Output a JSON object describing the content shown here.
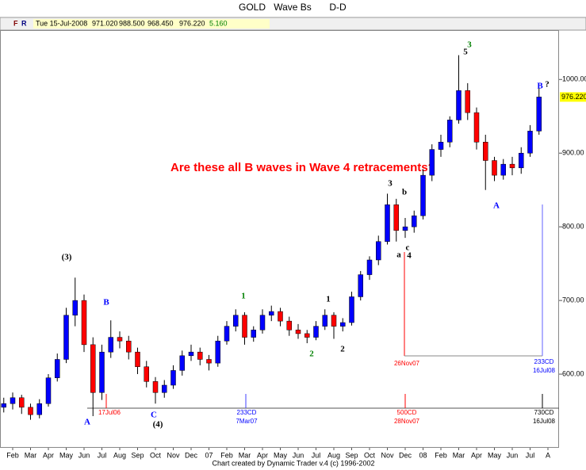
{
  "header": {
    "symbol": "GOLD",
    "study": "Wave Bs",
    "period": "D-D"
  },
  "info_bar": {
    "buttons": [
      "F",
      "R"
    ],
    "date": "Tue 15-Jul-2008",
    "open": "971.020",
    "high": "988.500",
    "low": "968.450",
    "close": "976.220",
    "change": "5.160"
  },
  "chart_data": {
    "type": "candlestick",
    "note": "Are these all B waves in Wave 4 retracements?",
    "categories": [
      null,
      "Feb",
      null,
      "Mar",
      null,
      "Apr",
      null,
      "May",
      null,
      "Jun",
      null,
      "Jul",
      null,
      "Aug",
      null,
      "Sep",
      null,
      "Oct",
      null,
      "Nov",
      null,
      "Dec",
      null,
      "07",
      null,
      "Feb",
      null,
      "Mar",
      null,
      "Apr",
      null,
      "May",
      null,
      "Jun",
      null,
      "Jul",
      null,
      "Aug",
      null,
      "Sep",
      null,
      "Oct",
      null,
      "Nov",
      null,
      "Dec",
      null,
      "08",
      null,
      "Feb",
      null,
      "Mar",
      null,
      "Apr",
      null,
      "May",
      null,
      "Jun",
      null,
      "Jul",
      null,
      "A"
    ],
    "open": [
      555,
      560,
      568,
      555,
      545,
      560,
      595,
      620,
      680,
      700,
      640,
      575,
      630,
      650,
      645,
      630,
      610,
      590,
      575,
      585,
      605,
      625,
      630,
      620,
      615,
      645,
      665,
      680,
      650,
      660,
      680,
      685,
      672,
      660,
      655,
      650,
      665,
      680,
      665,
      670,
      705,
      735,
      755,
      780,
      830,
      795,
      800,
      815,
      870,
      905,
      915,
      945,
      985,
      955,
      915,
      890,
      870,
      885,
      880,
      900,
      930,
      null
    ],
    "high": [
      568,
      575,
      572,
      560,
      566,
      600,
      628,
      690,
      731,
      708,
      650,
      640,
      673,
      658,
      652,
      636,
      618,
      596,
      592,
      612,
      632,
      640,
      636,
      626,
      652,
      672,
      688,
      684,
      665,
      688,
      693,
      690,
      678,
      668,
      660,
      672,
      688,
      684,
      676,
      712,
      740,
      760,
      788,
      845,
      838,
      812,
      822,
      878,
      912,
      925,
      950,
      1033,
      995,
      962,
      925,
      895,
      892,
      895,
      908,
      938,
      988.5,
      null
    ],
    "low": [
      548,
      552,
      546,
      538,
      540,
      556,
      590,
      615,
      665,
      630,
      543,
      565,
      622,
      635,
      620,
      600,
      582,
      560,
      568,
      580,
      598,
      618,
      612,
      605,
      610,
      640,
      658,
      640,
      644,
      655,
      672,
      665,
      652,
      648,
      642,
      646,
      660,
      648,
      658,
      666,
      700,
      728,
      748,
      776,
      780,
      785,
      792,
      810,
      862,
      895,
      908,
      940,
      945,
      905,
      850,
      862,
      864,
      870,
      872,
      895,
      925,
      null
    ],
    "close": [
      560,
      568,
      555,
      545,
      560,
      595,
      620,
      680,
      700,
      640,
      575,
      630,
      650,
      645,
      630,
      610,
      590,
      575,
      585,
      605,
      625,
      630,
      620,
      615,
      645,
      665,
      680,
      650,
      660,
      680,
      685,
      672,
      660,
      655,
      650,
      665,
      680,
      665,
      670,
      705,
      735,
      755,
      780,
      830,
      795,
      800,
      815,
      870,
      905,
      915,
      945,
      985,
      955,
      915,
      890,
      870,
      885,
      880,
      900,
      930,
      976.22,
      null
    ],
    "up_color": "#0000ff",
    "down_color": "#ff0000",
    "ylim": [
      500,
      1067
    ],
    "yticks": [
      {
        "value": 600,
        "label": "600.00"
      },
      {
        "value": 700,
        "label": "700.00"
      },
      {
        "value": 800,
        "label": "800.00"
      },
      {
        "value": 900,
        "label": "900.00"
      },
      {
        "value": 1000,
        "label": "1000.00"
      }
    ],
    "last_label": {
      "value": 976.22,
      "label": "976.220"
    },
    "annotations": [
      "(3)",
      "B",
      "A",
      "C",
      "(4)",
      "1",
      "2",
      "1",
      "2",
      "3",
      "b",
      "a",
      "c",
      "4",
      "5",
      "3",
      "A",
      "B",
      "?"
    ],
    "time_labels": [
      "17Jul06",
      "233CD",
      "7Mar07",
      "500CD",
      "28Nov07",
      "26Nov07",
      "233CD",
      "16Jul08",
      "730CD",
      "16Jul08"
    ]
  },
  "footer": "Chart created by Dynamic Trader v.4  (c) 1996-2002"
}
